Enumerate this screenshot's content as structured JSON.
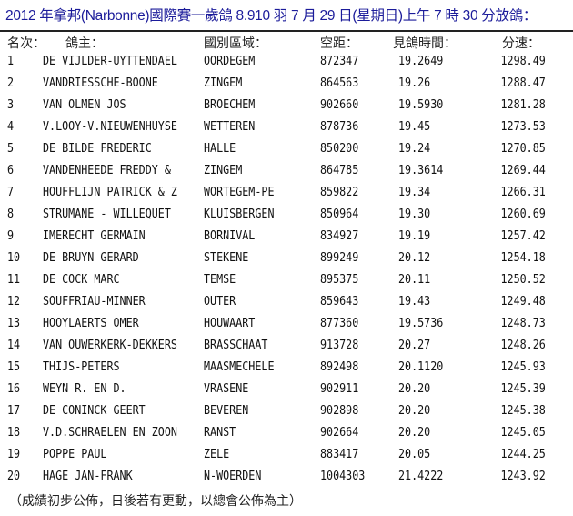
{
  "title": "2012 年拿邦(Narbonne)國際賽一歲鴿 8.910 羽 7 月 29 日(星期日)上午 7 時 30 分放鴿：",
  "headers": [
    "名次：",
    "鴿主：",
    "國別區域：",
    "空距：",
    "見鴿時間：",
    "分速："
  ],
  "rows": [
    [
      "1",
      "DE VIJLDER-UYTTENDAEL",
      "OORDEGEM",
      "872347",
      "19.2649",
      "1298.49"
    ],
    [
      "2",
      "VANDRIESSCHE-BOONE",
      "ZINGEM",
      "864563",
      "19.26",
      "1288.47"
    ],
    [
      "3",
      "VAN OLMEN JOS",
      "BROECHEM",
      "902660",
      "19.5930",
      "1281.28"
    ],
    [
      "4",
      "V.LOOY-V.NIEUWENHUYSE",
      "WETTEREN",
      "878736",
      "19.45",
      "1273.53"
    ],
    [
      "5",
      "DE BILDE FREDERIC",
      "HALLE",
      "850200",
      "19.24",
      "1270.85"
    ],
    [
      "6",
      "VANDENHEEDE FREDDY &",
      "ZINGEM",
      "864785",
      "19.3614",
      "1269.44"
    ],
    [
      "7",
      "HOUFFLIJN PATRICK & Z",
      "WORTEGEM-PE",
      "859822",
      "19.34",
      "1266.31"
    ],
    [
      "8",
      "STRUMANE - WILLEQUET",
      "KLUISBERGEN",
      "850964",
      "19.30",
      "1260.69"
    ],
    [
      "9",
      "IMERECHT GERMAIN",
      "BORNIVAL",
      "834927",
      "19.19",
      "1257.42"
    ],
    [
      "10",
      "DE BRUYN GERARD",
      "STEKENE",
      "899249",
      "20.12",
      "1254.18"
    ],
    [
      "11",
      "DE COCK MARC",
      "TEMSE",
      "895375",
      "20.11",
      "1250.52"
    ],
    [
      "12",
      "SOUFFRIAU-MINNER",
      "OUTER",
      "859643",
      "19.43",
      "1249.48"
    ],
    [
      "13",
      "HOOYLAERTS OMER",
      "HOUWAART",
      "877360",
      "19.5736",
      "1248.73"
    ],
    [
      "14",
      "VAN OUWERKERK-DEKKERS",
      "BRASSCHAAT",
      "913728",
      "20.27",
      "1248.26"
    ],
    [
      "15",
      "THIJS-PETERS",
      "MAASMECHELE",
      "892498",
      "20.1120",
      "1245.93"
    ],
    [
      "16",
      "WEYN R. EN D.",
      "VRASENE",
      "902911",
      "20.20",
      "1245.39"
    ],
    [
      "17",
      "DE CONINCK GEERT",
      "BEVEREN",
      "902898",
      "20.20",
      "1245.38"
    ],
    [
      "18",
      "V.D.SCHRAELEN EN ZOON",
      "RANST",
      "902664",
      "20.20",
      "1245.05"
    ],
    [
      "19",
      "POPPE PAUL",
      "ZELE",
      "883417",
      "20.05",
      "1244.25"
    ],
    [
      "20",
      "HAGE JAN-FRANK",
      "N-WOERDEN",
      "1004303",
      "21.4222",
      "1243.92"
    ]
  ],
  "note": "（成績初步公佈，日後若有更動，以總會公佈為主）",
  "colors": {
    "title": "#1b1b9a"
  }
}
